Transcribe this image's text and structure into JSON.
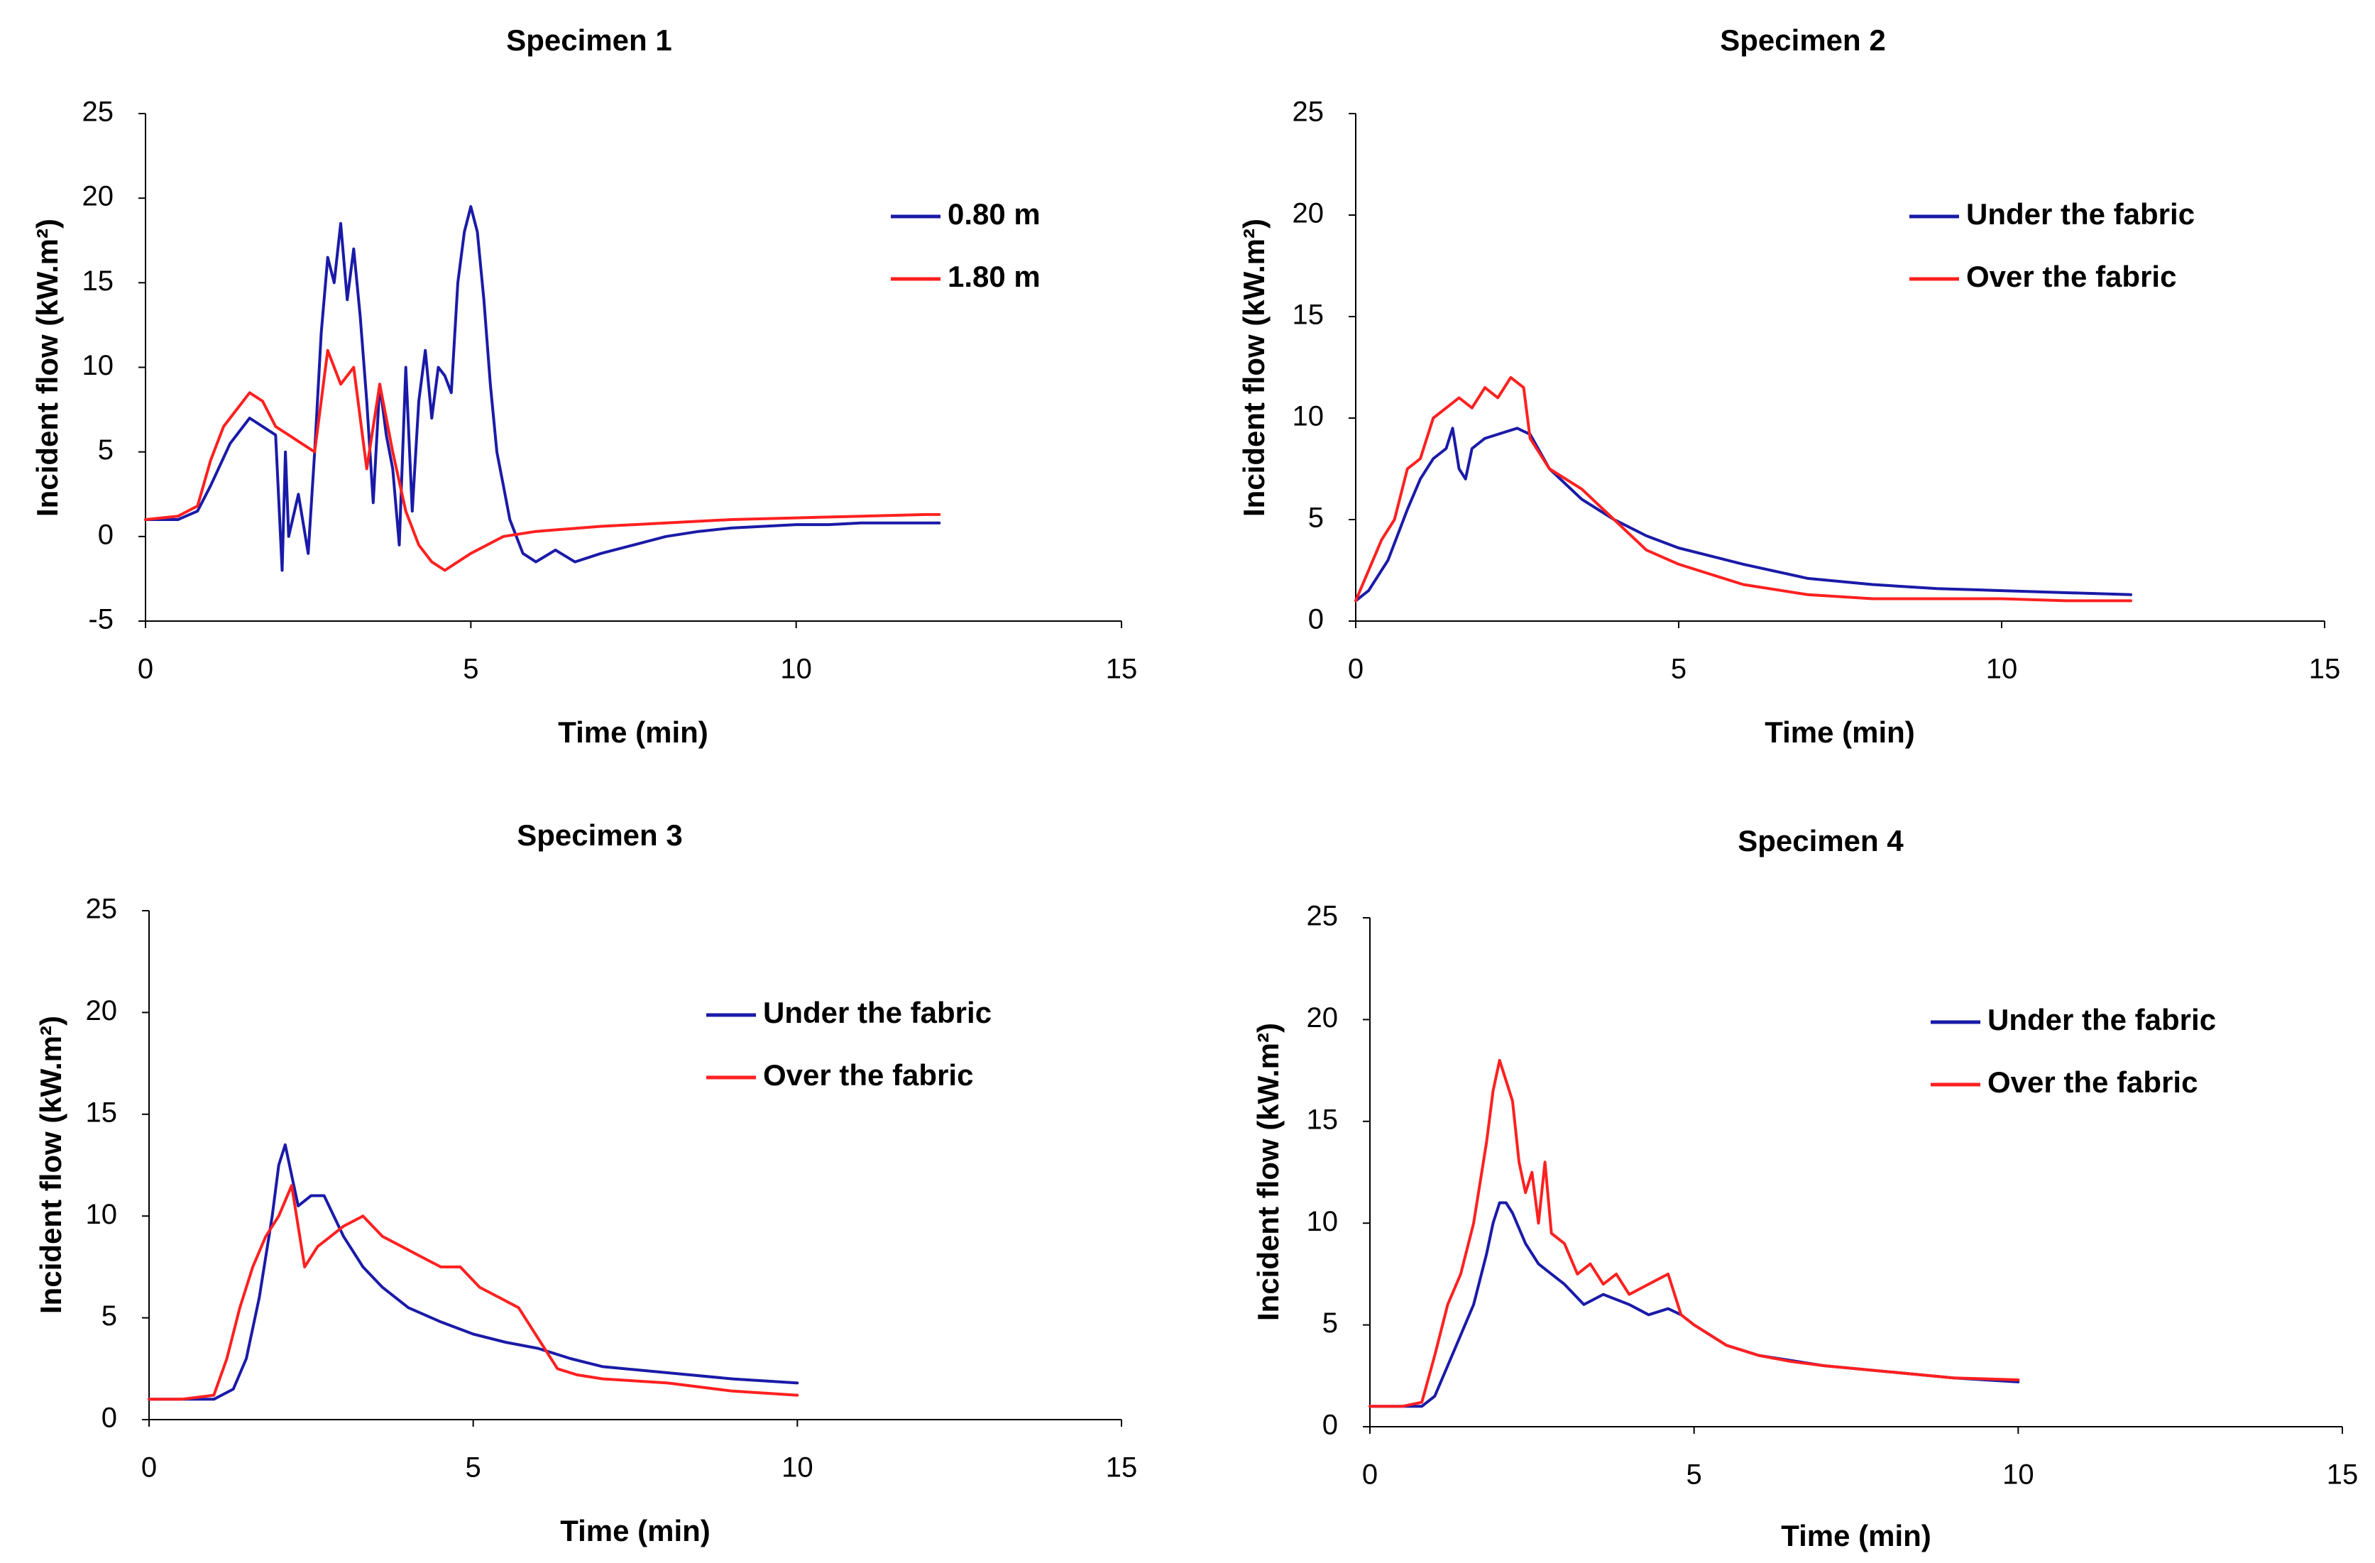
{
  "figure": "Incident heat flux vs time for four specimens",
  "chart_data": [
    {
      "type": "line",
      "title": "Specimen 1",
      "xlabel": "Time (min)",
      "ylabel": "Incident flow (kW.m²)",
      "xlim": [
        0,
        15
      ],
      "ylim": [
        -5,
        25
      ],
      "xticks": [
        "0",
        "5",
        "10",
        "15"
      ],
      "yticks": [
        "-5",
        "0",
        "5",
        "10",
        "15",
        "20",
        "25"
      ],
      "legend_position": "top-right",
      "series": [
        {
          "name": "0.80 m",
          "color": "#1a1aa8",
          "x": [
            0,
            0.5,
            0.8,
            1.0,
            1.3,
            1.6,
            1.8,
            2.0,
            2.1,
            2.15,
            2.2,
            2.35,
            2.5,
            2.6,
            2.7,
            2.8,
            2.9,
            3.0,
            3.1,
            3.2,
            3.3,
            3.4,
            3.5,
            3.6,
            3.7,
            3.8,
            3.9,
            4.0,
            4.1,
            4.2,
            4.3,
            4.4,
            4.5,
            4.6,
            4.7,
            4.8,
            4.9,
            5.0,
            5.1,
            5.2,
            5.3,
            5.4,
            5.5,
            5.6,
            5.8,
            6.0,
            6.3,
            6.6,
            7.0,
            7.5,
            8.0,
            8.5,
            9.0,
            9.5,
            10.0,
            10.5,
            11.0,
            11.5,
            12.0,
            12.2
          ],
          "y": [
            1.0,
            1.0,
            1.5,
            3.0,
            5.5,
            7.0,
            6.5,
            6.0,
            -2.0,
            5.0,
            0.0,
            2.5,
            -1.0,
            5.0,
            12.0,
            16.5,
            15.0,
            18.5,
            14.0,
            17.0,
            13.0,
            8.0,
            2.0,
            9.0,
            6.0,
            4.0,
            -0.5,
            10.0,
            1.5,
            8.0,
            11.0,
            7.0,
            10.0,
            9.5,
            8.5,
            15.0,
            18.0,
            19.5,
            18.0,
            14.0,
            9.0,
            5.0,
            3.0,
            1.0,
            -1.0,
            -1.5,
            -0.8,
            -1.5,
            -1.0,
            -0.5,
            0.0,
            0.3,
            0.5,
            0.6,
            0.7,
            0.7,
            0.8,
            0.8,
            0.8,
            0.8
          ]
        },
        {
          "name": "1.80 m",
          "color": "#ff2020",
          "x": [
            0,
            0.5,
            0.8,
            1.0,
            1.2,
            1.4,
            1.6,
            1.8,
            2.0,
            2.2,
            2.4,
            2.6,
            2.8,
            3.0,
            3.2,
            3.4,
            3.6,
            3.8,
            4.0,
            4.2,
            4.4,
            4.6,
            4.8,
            5.0,
            5.5,
            6.0,
            7.0,
            8.0,
            9.0,
            10.0,
            11.0,
            12.0,
            12.2
          ],
          "y": [
            1.0,
            1.2,
            1.8,
            4.5,
            6.5,
            7.5,
            8.5,
            8.0,
            6.5,
            6.0,
            5.5,
            5.0,
            11.0,
            9.0,
            10.0,
            4.0,
            9.0,
            5.0,
            1.5,
            -0.5,
            -1.5,
            -2.0,
            -1.5,
            -1.0,
            0.0,
            0.3,
            0.6,
            0.8,
            1.0,
            1.1,
            1.2,
            1.3,
            1.3
          ]
        }
      ]
    },
    {
      "type": "line",
      "title": "Specimen 2",
      "xlabel": "Time (min)",
      "ylabel": "Incident flow (kW.m²)",
      "xlim": [
        0,
        15
      ],
      "ylim": [
        0,
        25
      ],
      "xticks": [
        "0",
        "5",
        "10",
        "15"
      ],
      "yticks": [
        "0",
        "5",
        "10",
        "15",
        "20",
        "25"
      ],
      "legend_position": "top-right",
      "series": [
        {
          "name": "Under the fabric",
          "color": "#1a1aa8",
          "x": [
            0,
            0.2,
            0.5,
            0.8,
            1.0,
            1.2,
            1.4,
            1.5,
            1.6,
            1.7,
            1.8,
            2.0,
            2.3,
            2.5,
            2.7,
            3.0,
            3.5,
            4.0,
            4.5,
            5.0,
            6.0,
            7.0,
            8.0,
            9.0,
            10.0,
            11.0,
            12.0
          ],
          "y": [
            1.0,
            1.5,
            3.0,
            5.5,
            7.0,
            8.0,
            8.5,
            9.5,
            7.5,
            7.0,
            8.5,
            9.0,
            9.3,
            9.5,
            9.2,
            7.5,
            6.0,
            5.0,
            4.2,
            3.6,
            2.8,
            2.1,
            1.8,
            1.6,
            1.5,
            1.4,
            1.3
          ]
        },
        {
          "name": "Over the fabric",
          "color": "#ff2020",
          "x": [
            0,
            0.2,
            0.4,
            0.6,
            0.8,
            1.0,
            1.2,
            1.4,
            1.6,
            1.8,
            2.0,
            2.2,
            2.4,
            2.6,
            2.7,
            3.0,
            3.5,
            4.0,
            4.5,
            5.0,
            6.0,
            7.0,
            8.0,
            9.0,
            10.0,
            11.0,
            12.0
          ],
          "y": [
            1.0,
            2.5,
            4.0,
            5.0,
            7.5,
            8.0,
            10.0,
            10.5,
            11.0,
            10.5,
            11.5,
            11.0,
            12.0,
            11.5,
            9.0,
            7.5,
            6.5,
            5.0,
            3.5,
            2.8,
            1.8,
            1.3,
            1.1,
            1.1,
            1.1,
            1.0,
            1.0
          ]
        }
      ]
    },
    {
      "type": "line",
      "title": "Specimen 3",
      "xlabel": "Time (min)",
      "ylabel": "Incident flow (kW.m²)",
      "xlim": [
        0,
        15
      ],
      "ylim": [
        0,
        25
      ],
      "xticks": [
        "0",
        "5",
        "10",
        "15"
      ],
      "yticks": [
        "0",
        "5",
        "10",
        "15",
        "20",
        "25"
      ],
      "legend_position": "top-right",
      "series": [
        {
          "name": "Under the fabric",
          "color": "#1a1aa8",
          "x": [
            0,
            0.5,
            1.0,
            1.3,
            1.5,
            1.7,
            1.9,
            2.0,
            2.1,
            2.2,
            2.3,
            2.5,
            2.7,
            3.0,
            3.3,
            3.6,
            4.0,
            4.5,
            5.0,
            5.5,
            6.0,
            6.5,
            7.0,
            8.0,
            9.0,
            10.0
          ],
          "y": [
            1.0,
            1.0,
            1.0,
            1.5,
            3.0,
            6.0,
            10.0,
            12.5,
            13.5,
            12.0,
            10.5,
            11.0,
            11.0,
            9.0,
            7.5,
            6.5,
            5.5,
            4.8,
            4.2,
            3.8,
            3.5,
            3.0,
            2.6,
            2.3,
            2.0,
            1.8
          ]
        },
        {
          "name": "Over the fabric",
          "color": "#ff2020",
          "x": [
            0,
            0.5,
            1.0,
            1.2,
            1.4,
            1.6,
            1.8,
            2.0,
            2.2,
            2.4,
            2.6,
            2.8,
            3.0,
            3.3,
            3.6,
            3.9,
            4.2,
            4.5,
            4.8,
            5.1,
            5.4,
            5.7,
            6.0,
            6.3,
            6.6,
            7.0,
            8.0,
            9.0,
            10.0
          ],
          "y": [
            1.0,
            1.0,
            1.2,
            3.0,
            5.5,
            7.5,
            9.0,
            10.0,
            11.5,
            7.5,
            8.5,
            9.0,
            9.5,
            10.0,
            9.0,
            8.5,
            8.0,
            7.5,
            7.5,
            6.5,
            6.0,
            5.5,
            4.0,
            2.5,
            2.2,
            2.0,
            1.8,
            1.4,
            1.2
          ]
        }
      ]
    },
    {
      "type": "line",
      "title": "Specimen 4",
      "xlabel": "Time (min)",
      "ylabel": "Incident flow (kW.m²)",
      "xlim": [
        0,
        15
      ],
      "ylim": [
        0,
        25
      ],
      "xticks": [
        "0",
        "5",
        "10",
        "15"
      ],
      "yticks": [
        "0",
        "5",
        "10",
        "15",
        "20",
        "25"
      ],
      "legend_position": "top-right",
      "series": [
        {
          "name": "Under the fabric",
          "color": "#1a1aa8",
          "x": [
            0,
            0.5,
            0.8,
            1.0,
            1.2,
            1.4,
            1.6,
            1.8,
            1.9,
            2.0,
            2.1,
            2.2,
            2.4,
            2.6,
            2.8,
            3.0,
            3.3,
            3.6,
            4.0,
            4.3,
            4.6,
            4.8,
            5.0,
            5.5,
            6.0,
            7.0,
            8.0,
            9.0,
            10.0
          ],
          "y": [
            1.0,
            1.0,
            1.0,
            1.5,
            3.0,
            4.5,
            6.0,
            8.5,
            10.0,
            11.0,
            11.0,
            10.5,
            9.0,
            8.0,
            7.5,
            7.0,
            6.0,
            6.5,
            6.0,
            5.5,
            5.8,
            5.5,
            5.0,
            4.0,
            3.5,
            3.0,
            2.7,
            2.4,
            2.2
          ]
        },
        {
          "name": "Over the fabric",
          "color": "#ff2020",
          "x": [
            0,
            0.5,
            0.8,
            1.0,
            1.2,
            1.4,
            1.6,
            1.8,
            1.9,
            2.0,
            2.1,
            2.2,
            2.3,
            2.4,
            2.5,
            2.6,
            2.7,
            2.8,
            3.0,
            3.2,
            3.4,
            3.6,
            3.8,
            4.0,
            4.3,
            4.6,
            4.8,
            5.0,
            5.5,
            6.0,
            6.5,
            7.0,
            8.0,
            9.0,
            10.0
          ],
          "y": [
            1.0,
            1.0,
            1.2,
            3.5,
            6.0,
            7.5,
            10.0,
            14.0,
            16.5,
            18.0,
            17.0,
            16.0,
            13.0,
            11.5,
            12.5,
            10.0,
            13.0,
            9.5,
            9.0,
            7.5,
            8.0,
            7.0,
            7.5,
            6.5,
            7.0,
            7.5,
            5.5,
            5.0,
            4.0,
            3.5,
            3.2,
            3.0,
            2.7,
            2.4,
            2.3
          ]
        }
      ]
    }
  ]
}
